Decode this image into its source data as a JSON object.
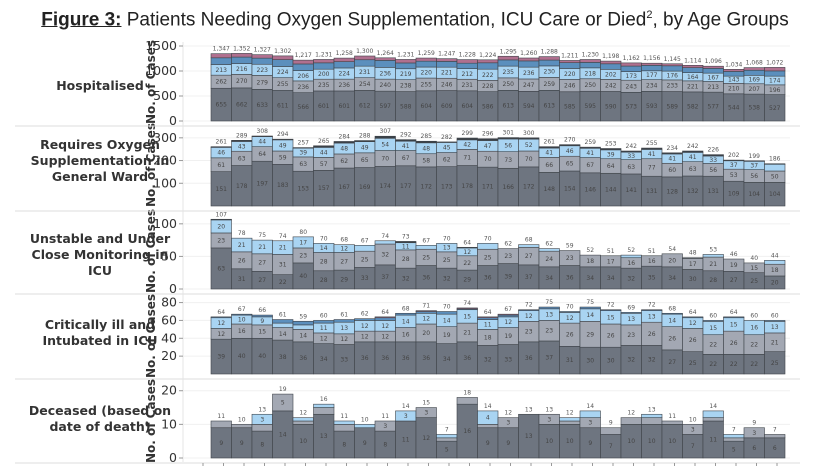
{
  "title": {
    "lead": "Figure 3:",
    "text": " Patients Needing Oxygen Supplementation, ICU Care or Died",
    "sup": "2",
    "tail": ", by Age Groups"
  },
  "chart_data": [
    {
      "type": "bar",
      "stacked": true,
      "title": "Hospitalised",
      "ylabel": "No. of Cases",
      "ylim": [
        0,
        1500
      ],
      "yticks": [
        0,
        500,
        1000,
        1500
      ],
      "grid": true,
      "totals": [
        1347,
        1352,
        1327,
        1302,
        1217,
        1231,
        1258,
        1300,
        1264,
        1231,
        1259,
        1247,
        1228,
        1224,
        1295,
        1260,
        1288,
        1211,
        1230,
        1198,
        1162,
        1156,
        1145,
        1114,
        1096,
        1034,
        1068,
        1072
      ],
      "series": [
        {
          "name": "segment-1",
          "color": "#6e7580",
          "values": [
            655,
            662,
            633,
            611,
            566,
            601,
            601,
            612,
            597,
            588,
            604,
            609,
            604,
            586,
            613,
            594,
            613,
            585,
            595,
            590,
            573,
            593,
            589,
            582,
            577,
            544,
            538,
            527
          ]
        },
        {
          "name": "segment-2",
          "color": "#a3a8b3",
          "values": [
            262,
            270,
            279,
            255,
            236,
            235,
            236,
            254,
            240,
            238,
            255,
            246,
            231,
            228,
            250,
            247,
            259,
            246,
            250,
            242,
            243,
            234,
            233,
            221,
            213,
            210,
            207,
            196
          ]
        },
        {
          "name": "segment-3",
          "color": "#a9d4f2",
          "values": [
            213,
            216,
            223,
            224,
            206,
            200,
            224,
            231,
            236,
            219,
            220,
            221,
            212,
            222,
            235,
            236,
            230,
            220,
            218,
            202,
            173,
            177,
            176,
            164,
            167,
            143,
            169,
            174
          ]
        },
        {
          "name": "segment-4",
          "color": "#5b8fbd",
          "values": [
            134,
            131,
            122,
            137,
            133,
            127,
            126,
            128,
            139,
            116,
            117,
            116,
            109,
            128,
            124,
            125,
            117,
            116,
            109,
            110,
            110,
            109,
            106,
            100,
            96,
            94,
            101,
            105
          ]
        },
        {
          "name": "segment-5",
          "color": "#b0708f",
          "values": [
            83,
            73,
            70,
            75,
            76,
            68,
            71,
            75,
            52,
            70,
            63,
            55,
            72,
            60,
            73,
            58,
            69,
            44,
            58,
            54,
            63,
            43,
            41,
            47,
            43,
            43,
            53,
            70
          ]
        }
      ]
    },
    {
      "type": "bar",
      "stacked": true,
      "title": "Requires Oxygen Supplementation in General Ward",
      "ylabel": "No. of Cases",
      "ylim": [
        0,
        330
      ],
      "yticks": [
        100,
        200,
        300
      ],
      "grid": true,
      "totals": [
        261,
        289,
        308,
        294,
        257,
        265,
        284,
        288,
        307,
        292,
        285,
        282,
        299,
        296,
        301,
        300,
        261,
        270,
        259,
        253,
        242,
        255,
        234,
        242,
        226,
        202,
        199,
        186
      ],
      "series": [
        {
          "name": "segment-1",
          "color": "#6e7580",
          "values": [
            151,
            178,
            197,
            183,
            153,
            157,
            167,
            169,
            174,
            177,
            172,
            173,
            178,
            171,
            166,
            172,
            148,
            154,
            146,
            144,
            141,
            131,
            128,
            132,
            131,
            109,
            104,
            104
          ]
        },
        {
          "name": "segment-2",
          "color": "#a3a8b3",
          "values": [
            61,
            63,
            64,
            59,
            63,
            57,
            62,
            65,
            70,
            67,
            58,
            62,
            71,
            70,
            73,
            70,
            66,
            65,
            67,
            64,
            63,
            77,
            60,
            63,
            56,
            53,
            56,
            50
          ]
        },
        {
          "name": "segment-3",
          "color": "#a9d4f2",
          "values": [
            46,
            43,
            44,
            49,
            39,
            44,
            48,
            49,
            54,
            41,
            48,
            45,
            42,
            47,
            56,
            52,
            41,
            46,
            41,
            39,
            33,
            41,
            41,
            41,
            33,
            37,
            37,
            30
          ]
        },
        {
          "name": "segment-4",
          "color": "#3a4047",
          "values": [
            3,
            5,
            3,
            3,
            2,
            7,
            7,
            5,
            9,
            7,
            7,
            2,
            8,
            8,
            6,
            6,
            6,
            5,
            5,
            6,
            5,
            6,
            5,
            6,
            6,
            3,
            2,
            2
          ]
        }
      ]
    },
    {
      "type": "bar",
      "stacked": true,
      "title": "Unstable and Under Close Monitoring in ICU",
      "ylabel": "No. of Cases",
      "ylim": [
        0,
        112
      ],
      "yticks": [
        0,
        50,
        100
      ],
      "grid": true,
      "totals": [
        107,
        78,
        75,
        74,
        80,
        70,
        68,
        67,
        74,
        73,
        67,
        70,
        64,
        70,
        62,
        68,
        62,
        59,
        52,
        51,
        52,
        51,
        54,
        48,
        53,
        46,
        40,
        44
      ],
      "series": [
        {
          "name": "segment-1",
          "color": "#6e7580",
          "values": [
            63,
            31,
            27,
            22,
            40,
            28,
            29,
            33,
            37,
            32,
            36,
            32,
            29,
            36,
            39,
            37,
            34,
            36,
            34,
            34,
            32,
            35,
            34,
            30,
            28,
            27,
            25,
            20
          ]
        },
        {
          "name": "segment-2",
          "color": "#a3a8b3",
          "values": [
            23,
            26,
            27,
            31,
            23,
            28,
            27,
            25,
            32,
            28,
            25,
            25,
            22,
            25,
            23,
            27,
            24,
            23,
            18,
            17,
            16,
            16,
            20,
            17,
            21,
            19,
            15,
            18
          ]
        },
        {
          "name": "segment-3",
          "color": "#a9d4f2",
          "values": [
            20,
            21,
            21,
            21,
            17,
            14,
            12,
            9,
            5,
            11,
            6,
            13,
            12,
            9,
            0,
            4,
            4,
            0,
            0,
            0,
            4,
            0,
            0,
            0,
            4,
            0,
            0,
            6
          ]
        },
        {
          "name": "segment-4",
          "color": "#3a4047",
          "values": [
            1,
            0,
            0,
            0,
            0,
            0,
            0,
            0,
            0,
            2,
            0,
            0,
            1,
            0,
            0,
            0,
            0,
            0,
            0,
            0,
            0,
            0,
            0,
            1,
            0,
            0,
            0,
            0
          ]
        }
      ]
    },
    {
      "type": "bar",
      "stacked": true,
      "title": "Critically ill and Intubated in ICU",
      "ylabel": "No. of Cases",
      "ylim": [
        0,
        84
      ],
      "yticks": [
        20,
        40,
        60,
        80
      ],
      "grid": true,
      "totals": [
        64,
        67,
        66,
        61,
        59,
        60,
        61,
        62,
        64,
        68,
        71,
        70,
        74,
        64,
        67,
        72,
        75,
        70,
        75,
        72,
        69,
        72,
        68,
        64,
        60,
        64,
        60,
        60
      ],
      "series": [
        {
          "name": "segment-1",
          "color": "#6e7580",
          "values": [
            39,
            40,
            40,
            38,
            36,
            34,
            33,
            36,
            36,
            36,
            36,
            34,
            36,
            32,
            33,
            36,
            37,
            31,
            30,
            30,
            32,
            32,
            27,
            25,
            22,
            22,
            22,
            25
          ]
        },
        {
          "name": "segment-2",
          "color": "#a3a8b3",
          "values": [
            12,
            16,
            15,
            14,
            14,
            12,
            12,
            12,
            12,
            16,
            20,
            19,
            21,
            18,
            19,
            23,
            23,
            26,
            29,
            26,
            23,
            26,
            26,
            26,
            22,
            26,
            22,
            21
          ]
        },
        {
          "name": "segment-3",
          "color": "#a9d4f2",
          "values": [
            12,
            10,
            9,
            5,
            5,
            11,
            13,
            12,
            12,
            14,
            12,
            14,
            15,
            11,
            12,
            12,
            13,
            12,
            14,
            15,
            13,
            13,
            14,
            12,
            15,
            15,
            16,
            13
          ]
        },
        {
          "name": "segment-4",
          "color": "#5b8fbd",
          "values": [
            1,
            1,
            2,
            4,
            4,
            3,
            3,
            2,
            3,
            2,
            2,
            3,
            1,
            2,
            2,
            1,
            2,
            1,
            2,
            1,
            1,
            1,
            1,
            1,
            1,
            1,
            0,
            1
          ]
        },
        {
          "name": "segment-5",
          "color": "#b0708f",
          "values": [
            0,
            0,
            0,
            0,
            0,
            0,
            0,
            0,
            1,
            0,
            1,
            0,
            1,
            1,
            1,
            0,
            0,
            0,
            0,
            0,
            0,
            0,
            0,
            0,
            0,
            0,
            0,
            0
          ]
        }
      ]
    },
    {
      "type": "bar",
      "stacked": true,
      "title": "Deceased (based on date of death)",
      "ylabel": "No. of Cases",
      "ylim": [
        0,
        22
      ],
      "yticks": [
        0,
        10,
        20
      ],
      "grid": true,
      "totals": [
        11,
        10,
        13,
        19,
        12,
        16,
        11,
        10,
        11,
        14,
        15,
        7,
        18,
        14,
        12,
        13,
        13,
        12,
        14,
        9,
        12,
        13,
        11,
        10,
        14,
        7,
        9,
        7
      ],
      "series": [
        {
          "name": "segment-1",
          "color": "#6e7580",
          "values": [
            9,
            9,
            8,
            14,
            10,
            13,
            8,
            9,
            8,
            11,
            12,
            5,
            16,
            9,
            9,
            13,
            10,
            10,
            9,
            7,
            10,
            10,
            10,
            7,
            11,
            5,
            6,
            6
          ]
        },
        {
          "name": "segment-2",
          "color": "#a3a8b3",
          "values": [
            2,
            1,
            2,
            5,
            1,
            2,
            2,
            0,
            3,
            0,
            3,
            1,
            2,
            1,
            3,
            0,
            3,
            1,
            3,
            2,
            2,
            2,
            1,
            3,
            1,
            1,
            3,
            1
          ]
        },
        {
          "name": "segment-3",
          "color": "#a9d4f2",
          "values": [
            0,
            0,
            3,
            0,
            1,
            1,
            1,
            1,
            0,
            3,
            0,
            1,
            0,
            4,
            0,
            0,
            0,
            1,
            2,
            0,
            0,
            1,
            0,
            0,
            2,
            1,
            0,
            0
          ]
        }
      ]
    }
  ]
}
